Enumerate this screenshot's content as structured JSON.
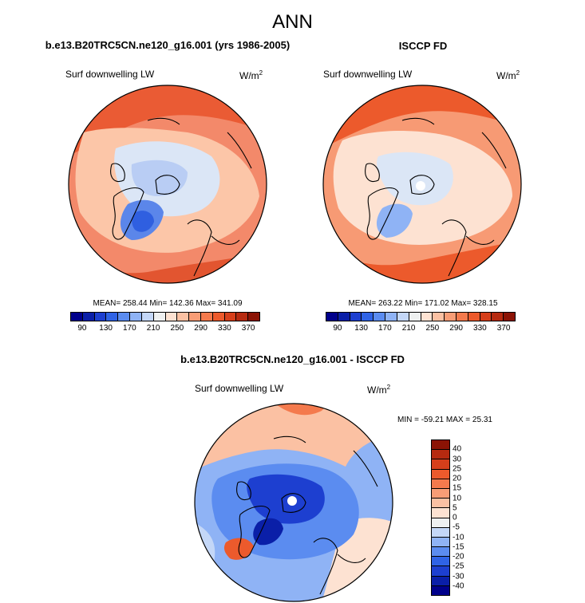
{
  "title": "ANN",
  "panels": [
    {
      "title": "b.e13.B20TRC5CN.ne120_g16.001 (yrs 1986-2005)",
      "variable": "Surf downwelling LW",
      "units": "W/m",
      "units_sup": "2",
      "stats": "MEAN= 258.44  Min= 142.36  Max= 341.09"
    },
    {
      "title": "ISCCP FD",
      "variable": "Surf downwelling LW",
      "units": "W/m",
      "units_sup": "2",
      "stats": "MEAN= 263.22  Min= 171.02  Max= 328.15"
    },
    {
      "title": "b.e13.B20TRC5CN.ne120_g16.001 - ISCCP FD",
      "variable": "Surf downwelling LW",
      "units": "W/m",
      "units_sup": "2",
      "stats": "MIN = -59.21 MAX =  25.31"
    }
  ],
  "colorbar_abs": {
    "colors": [
      "#00008b",
      "#0a1fa8",
      "#1d3fd0",
      "#2f63e6",
      "#5b8cf0",
      "#8fb3f5",
      "#c4d7f7",
      "#eef0f0",
      "#fde2d2",
      "#fbc1a3",
      "#f89d76",
      "#f47a4d",
      "#ec5a2c",
      "#d63f1b",
      "#b62a10",
      "#8b1305"
    ],
    "ticks": [
      "90",
      "130",
      "170",
      "210",
      "250",
      "290",
      "330",
      "370"
    ]
  },
  "colorbar_diff": {
    "colors": [
      "#8b1305",
      "#b62a10",
      "#d63f1b",
      "#ec5a2c",
      "#f47a4d",
      "#f89d76",
      "#fbc1a3",
      "#fde2d2",
      "#eef0f0",
      "#c4d7f7",
      "#8fb3f5",
      "#5b8cf0",
      "#2f63e6",
      "#1d3fd0",
      "#0a1fa8",
      "#00008b"
    ],
    "ticks": [
      "40",
      "30",
      "25",
      "20",
      "15",
      "10",
      "5",
      "0",
      "-5",
      "-10",
      "-15",
      "-20",
      "-25",
      "-30",
      "-40"
    ]
  }
}
